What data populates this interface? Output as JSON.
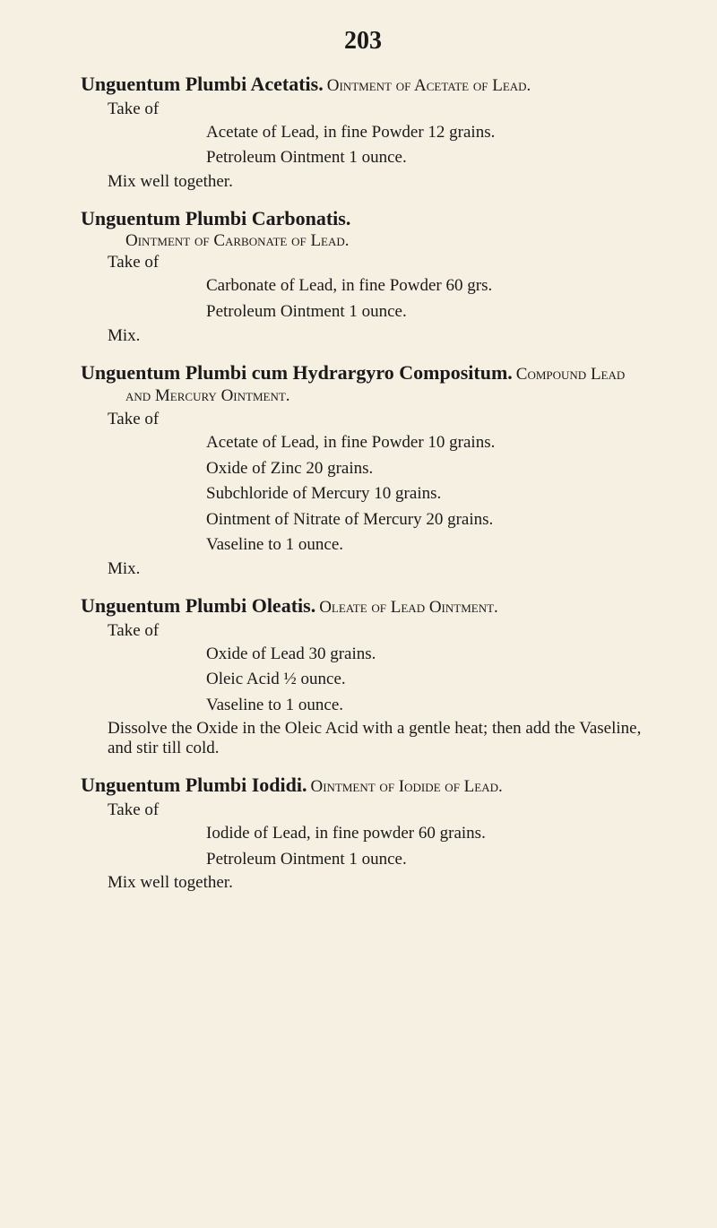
{
  "page_number": "203",
  "entries": [
    {
      "title": "Unguentum Plumbi Acetatis.",
      "subtitle": " Ointment of Acetate of Lead.",
      "take_of": "Take of",
      "ingredients": [
        "Acetate of Lead, in fine Powder 12 grains.",
        "Petroleum Ointment 1 ounce."
      ],
      "mix": "Mix well together."
    },
    {
      "title": "Unguentum Plumbi Carbonatis.",
      "subtitle_indented": "Ointment of Carbonate of Lead.",
      "take_of": "Take of",
      "ingredients": [
        "Carbonate of Lead, in fine Powder 60 grs.",
        "Petroleum Ointment 1 ounce."
      ],
      "mix": "Mix."
    },
    {
      "title": "Unguentum Plumbi cum Hydrargyro Compositum.",
      "subtitle": " Compound Lead and Mercury Ointment.",
      "take_of": "Take of",
      "ingredients": [
        "Acetate of Lead, in fine Powder 10 grains.",
        "Oxide of Zinc 20 grains.",
        "Subchloride of Mercury 10 grains.",
        "Ointment of Nitrate of Mercury 20 grains.",
        "Vaseline to 1 ounce."
      ],
      "mix": "Mix."
    },
    {
      "title": "Unguentum Plumbi Oleatis.",
      "subtitle": " Oleate of Lead Ointment.",
      "take_of": "Take of",
      "ingredients": [
        "Oxide of Lead 30 grains.",
        "Oleic Acid ½ ounce.",
        "Vaseline to 1 ounce."
      ],
      "instruction": "Dissolve the Oxide in the Oleic Acid with a gentle heat; then add the Vaseline, and stir till cold."
    },
    {
      "title": "Unguentum Plumbi Iodidi.",
      "subtitle": " Ointment of Iodide of Lead.",
      "take_of": "Take of",
      "ingredients": [
        "Iodide of Lead, in fine powder 60 grains.",
        "Petroleum Ointment 1 ounce."
      ],
      "mix": "Mix well together."
    }
  ]
}
